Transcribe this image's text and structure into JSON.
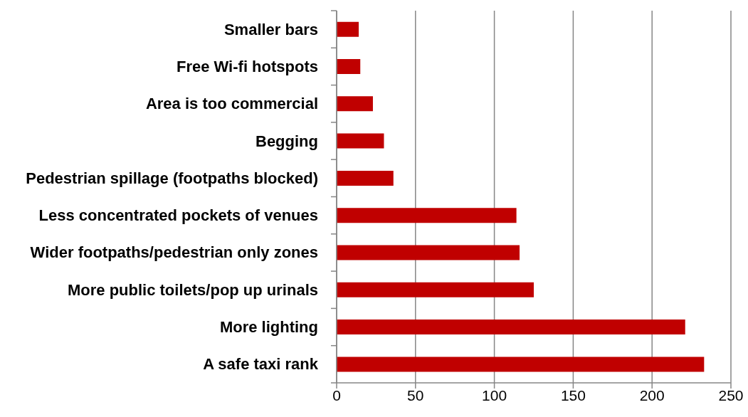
{
  "chart_data": {
    "type": "bar",
    "orientation": "horizontal",
    "categories": [
      "Smaller bars",
      "Free Wi-fi hotspots",
      "Area is too commercial",
      "Begging",
      "Pedestrian spillage (footpaths blocked)",
      "Less concentrated pockets of venues",
      "Wider footpaths/pedestrian only zones",
      "More public toilets/pop up urinals",
      "More lighting",
      "A safe taxi rank"
    ],
    "values": [
      14,
      15,
      23,
      30,
      36,
      114,
      116,
      125,
      221,
      233
    ],
    "color": "#c00000",
    "xlim": [
      0,
      250
    ],
    "xticks": [
      0,
      50,
      100,
      150,
      200,
      250
    ],
    "grid": "x"
  }
}
